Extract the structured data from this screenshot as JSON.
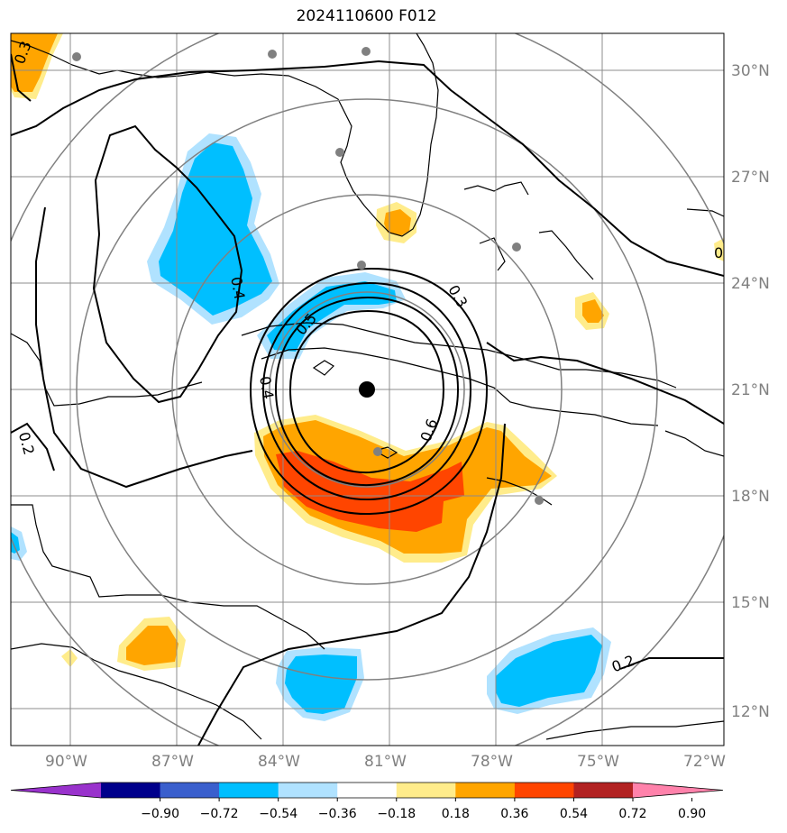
{
  "title": "2024110600 F012",
  "map": {
    "lon_ticks": [
      "90°W",
      "87°W",
      "84°W",
      "81°W",
      "78°W",
      "75°W",
      "72°W"
    ],
    "lat_ticks": [
      "30°N",
      "27°N",
      "24°N",
      "21°N",
      "18°N",
      "15°N",
      "12°N"
    ],
    "storm_center": {
      "lon": -81.0,
      "lat": 21.0
    },
    "contour_labels": [
      "0.3",
      "0.4",
      "0.5",
      "0.4",
      "0.6",
      "0.3",
      "0.2",
      "0.2",
      "0.3",
      "0"
    ],
    "range_rings": 4
  },
  "colorbar": {
    "ticks": [
      "−0.90",
      "−0.72",
      "−0.54",
      "−0.36",
      "−0.18",
      "0.18",
      "0.36",
      "0.54",
      "0.72",
      "0.90"
    ],
    "colors": [
      "#9932cc",
      "#00008b",
      "#3a5fcd",
      "#00bfff",
      "#b0e2ff",
      "#ffffff",
      "#ffec8b",
      "#ffa500",
      "#ff4500",
      "#b22222",
      "#ff82ab"
    ]
  }
}
